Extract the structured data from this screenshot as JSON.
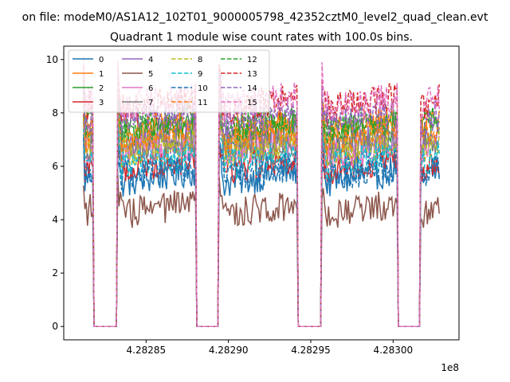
{
  "chart_data": {
    "type": "line",
    "suptitle": "on file: modeM0/AS1A12_102T01_9000005798_42352cztM0_level2_quad_clean.evt",
    "title": "Quadrant 1 module wise count rates with 100.0s bins.",
    "xlabel": "",
    "ylabel": "",
    "x_offset_label": "1e8",
    "xlim": [
      4.2828,
      4.28304
    ],
    "ylim": [
      -0.5,
      10.5
    ],
    "xticks": [
      4.28285,
      4.2829,
      4.28295,
      4.283
    ],
    "xtick_labels": [
      "4.28285",
      "4.28290",
      "4.28295",
      "4.28300"
    ],
    "yticks": [
      0,
      2,
      4,
      6,
      8,
      10
    ],
    "ytick_labels": [
      "0",
      "2",
      "4",
      "6",
      "8",
      "10"
    ],
    "legend_position": "upper left",
    "legend_ncol": 4,
    "x_range": [
      4.282812,
      4.283028
    ],
    "segments": [
      {
        "start": 4.282812,
        "end": 4.282818,
        "state": "on"
      },
      {
        "start": 4.282818,
        "end": 4.282832,
        "state": "off"
      },
      {
        "start": 4.282832,
        "end": 4.28288,
        "state": "on"
      },
      {
        "start": 4.28288,
        "end": 4.282894,
        "state": "off"
      },
      {
        "start": 4.282894,
        "end": 4.282942,
        "state": "on"
      },
      {
        "start": 4.282942,
        "end": 4.282956,
        "state": "off"
      },
      {
        "start": 4.282956,
        "end": 4.283003,
        "state": "on"
      },
      {
        "start": 4.283003,
        "end": 4.283016,
        "state": "off"
      },
      {
        "start": 4.283016,
        "end": 4.283028,
        "state": "on"
      }
    ],
    "series": [
      {
        "name": "0",
        "color": "#1f77b4",
        "dash": "solid",
        "mean_on": 5.6,
        "trend": 0.5
      },
      {
        "name": "1",
        "color": "#ff7f0e",
        "dash": "solid",
        "mean_on": 7.5,
        "trend": 0.4
      },
      {
        "name": "2",
        "color": "#2ca02c",
        "dash": "solid",
        "mean_on": 7.3,
        "trend": 0.5
      },
      {
        "name": "3",
        "color": "#d62728",
        "dash": "solid",
        "mean_on": 6.1,
        "trend": 0.5
      },
      {
        "name": "4",
        "color": "#9467bd",
        "dash": "solid",
        "mean_on": 6.9,
        "trend": 0.4
      },
      {
        "name": "5",
        "color": "#8c564b",
        "dash": "solid",
        "mean_on": 4.4,
        "trend": 0.4
      },
      {
        "name": "6",
        "color": "#e377c2",
        "dash": "solid",
        "mean_on": 6.6,
        "trend": 0.4
      },
      {
        "name": "7",
        "color": "#7f7f7f",
        "dash": "solid",
        "mean_on": 6.8,
        "trend": 0.4
      },
      {
        "name": "8",
        "color": "#bcbd22",
        "dash": "dashed",
        "mean_on": 6.7,
        "trend": 0.4
      },
      {
        "name": "9",
        "color": "#17becf",
        "dash": "dashed",
        "mean_on": 6.2,
        "trend": 0.4
      },
      {
        "name": "10",
        "color": "#1f77b4",
        "dash": "dashed",
        "mean_on": 5.8,
        "trend": 0.4
      },
      {
        "name": "11",
        "color": "#ff7f0e",
        "dash": "dashed",
        "mean_on": 7.2,
        "trend": 0.4
      },
      {
        "name": "12",
        "color": "#2ca02c",
        "dash": "dashed",
        "mean_on": 7.6,
        "trend": 0.4
      },
      {
        "name": "13",
        "color": "#d62728",
        "dash": "dashed",
        "mean_on": 8.3,
        "trend": 0.5
      },
      {
        "name": "14",
        "color": "#9467bd",
        "dash": "dashed",
        "mean_on": 7.8,
        "trend": 0.4
      },
      {
        "name": "15",
        "color": "#e377c2",
        "dash": "dashed",
        "mean_on": 8.4,
        "trend": 0.4
      }
    ]
  }
}
